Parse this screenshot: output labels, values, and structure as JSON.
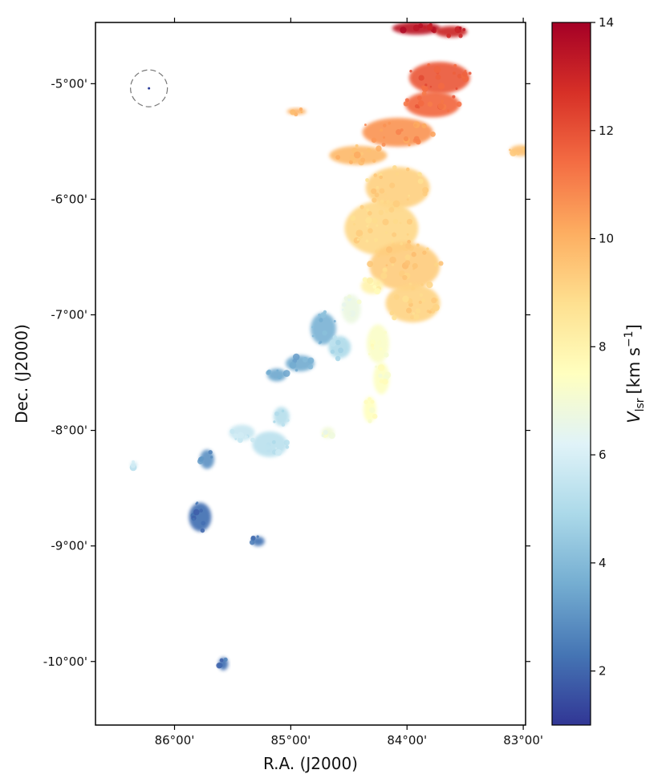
{
  "chart_data": {
    "type": "heatmap",
    "title": "",
    "xlabel": "R.A. (J2000)",
    "ylabel": "Dec. (J2000)",
    "xlim_deg": [
      86.68,
      82.98
    ],
    "ylim_deg": [
      -10.55,
      -4.47
    ],
    "x_ticks": [
      {
        "value": 86.0,
        "label": "86°00'"
      },
      {
        "value": 85.0,
        "label": "85°00'"
      },
      {
        "value": 84.0,
        "label": "84°00'"
      },
      {
        "value": 83.0,
        "label": "83°00'"
      }
    ],
    "y_ticks": [
      {
        "value": -5.0,
        "label": "-5°00'"
      },
      {
        "value": -6.0,
        "label": "-6°00'"
      },
      {
        "value": -7.0,
        "label": "-7°00'"
      },
      {
        "value": -8.0,
        "label": "-8°00'"
      },
      {
        "value": -9.0,
        "label": "-9°00'"
      },
      {
        "value": -10.0,
        "label": "-10°00'"
      }
    ],
    "colorbar": {
      "label_main": "V",
      "label_sub": "lsr",
      "label_unit": "[km s",
      "label_exp": "−1",
      "label_end": "]",
      "range": [
        1,
        14
      ],
      "colormap": "RdYlBu_r",
      "ticks": [
        {
          "value": 2,
          "label": "2"
        },
        {
          "value": 4,
          "label": "4"
        },
        {
          "value": 6,
          "label": "6"
        },
        {
          "value": 8,
          "label": "8"
        },
        {
          "value": 10,
          "label": "10"
        },
        {
          "value": 12,
          "label": "12"
        },
        {
          "value": 14,
          "label": "14"
        }
      ]
    },
    "beam": {
      "ra": 86.22,
      "dec": -5.04
    },
    "grid": false,
    "emission_regions": [
      {
        "ra": 83.92,
        "dec": -4.52,
        "v": 13.4
      },
      {
        "ra": 83.62,
        "dec": -4.55,
        "v": 13.0
      },
      {
        "ra": 83.72,
        "dec": -4.95,
        "v": 11.8
      },
      {
        "ra": 83.78,
        "dec": -5.18,
        "v": 11.5
      },
      {
        "ra": 84.08,
        "dec": -5.42,
        "v": 10.6
      },
      {
        "ra": 84.42,
        "dec": -5.62,
        "v": 9.8
      },
      {
        "ra": 84.95,
        "dec": -5.24,
        "v": 10.0
      },
      {
        "ra": 83.02,
        "dec": -5.58,
        "v": 9.6
      },
      {
        "ra": 84.08,
        "dec": -5.9,
        "v": 9.2
      },
      {
        "ra": 84.22,
        "dec": -6.25,
        "v": 9.0
      },
      {
        "ra": 84.02,
        "dec": -6.58,
        "v": 9.3
      },
      {
        "ra": 83.95,
        "dec": -6.9,
        "v": 9.1
      },
      {
        "ra": 84.3,
        "dec": -6.75,
        "v": 8.0
      },
      {
        "ra": 84.48,
        "dec": -6.95,
        "v": 6.7
      },
      {
        "ra": 84.72,
        "dec": -7.12,
        "v": 3.8
      },
      {
        "ra": 84.58,
        "dec": -7.28,
        "v": 5.0
      },
      {
        "ra": 84.25,
        "dec": -7.25,
        "v": 7.3
      },
      {
        "ra": 84.22,
        "dec": -7.55,
        "v": 7.4
      },
      {
        "ra": 84.32,
        "dec": -7.82,
        "v": 7.5
      },
      {
        "ra": 84.92,
        "dec": -7.42,
        "v": 3.6
      },
      {
        "ra": 85.12,
        "dec": -7.52,
        "v": 3.5
      },
      {
        "ra": 85.08,
        "dec": -7.88,
        "v": 5.2
      },
      {
        "ra": 85.18,
        "dec": -8.12,
        "v": 5.3
      },
      {
        "ra": 85.42,
        "dec": -8.02,
        "v": 5.6
      },
      {
        "ra": 84.68,
        "dec": -8.02,
        "v": 6.9
      },
      {
        "ra": 85.72,
        "dec": -8.25,
        "v": 3.0
      },
      {
        "ra": 85.78,
        "dec": -8.75,
        "v": 2.2
      },
      {
        "ra": 85.28,
        "dec": -8.96,
        "v": 2.3
      },
      {
        "ra": 85.58,
        "dec": -10.02,
        "v": 2.2
      },
      {
        "ra": 86.35,
        "dec": -8.3,
        "v": 5.5
      }
    ]
  }
}
